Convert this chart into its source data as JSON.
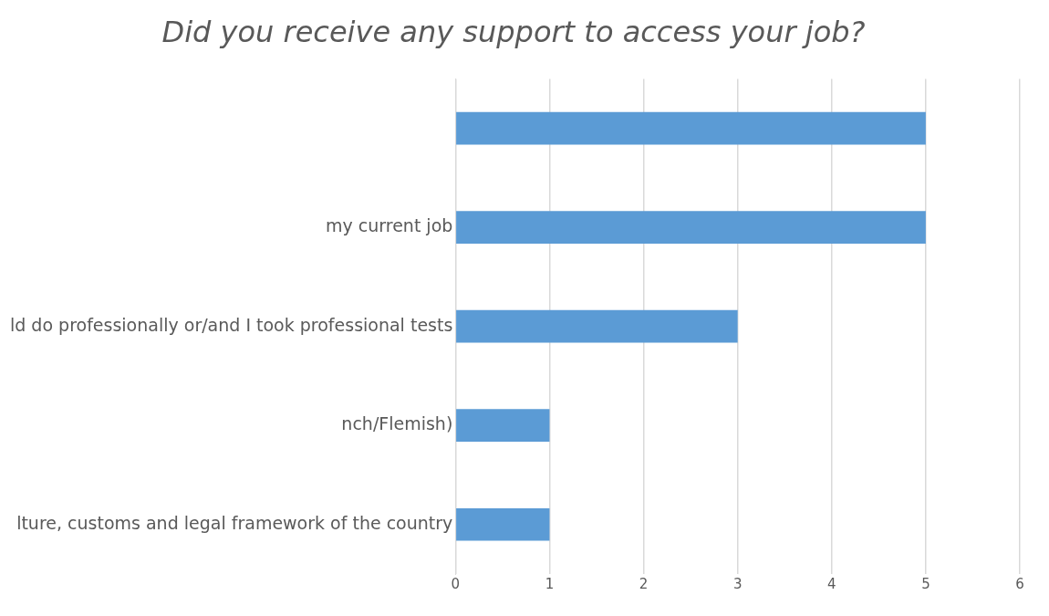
{
  "chart_data": {
    "type": "bar",
    "orientation": "horizontal",
    "title": "Did you receive any support to access your job?",
    "categories": [
      null,
      "my current job",
      "ld do professionally or/and I took professional tests",
      "nch/Flemish)",
      "lture, customs and legal framework of the country"
    ],
    "values": [
      5,
      5,
      3,
      1,
      1
    ],
    "color": "#5b9bd5",
    "xlim": [
      0,
      6
    ],
    "xticks": [
      0,
      1,
      2,
      3,
      4,
      5,
      6
    ],
    "grid": "x",
    "legend": false
  }
}
